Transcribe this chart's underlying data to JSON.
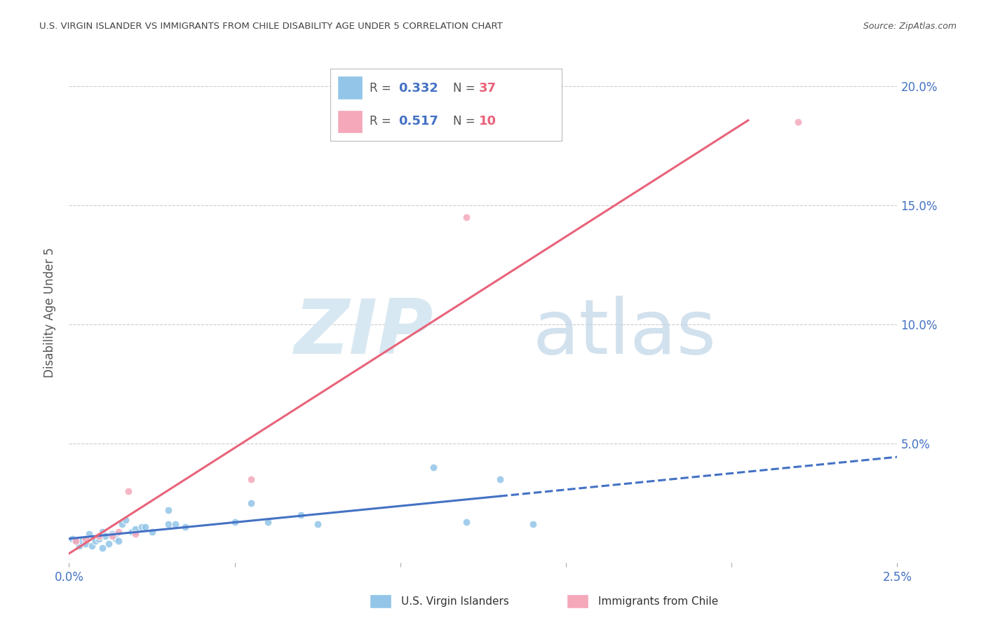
{
  "title": "U.S. VIRGIN ISLANDER VS IMMIGRANTS FROM CHILE DISABILITY AGE UNDER 5 CORRELATION CHART",
  "source": "Source: ZipAtlas.com",
  "ylabel": "Disability Age Under 5",
  "legend_label_blue": "U.S. Virgin Islanders",
  "legend_label_pink": "Immigrants from Chile",
  "r_blue": "0.332",
  "n_blue": "37",
  "r_pink": "0.517",
  "n_pink": "10",
  "xlim": [
    0.0,
    0.025
  ],
  "ylim": [
    0.0,
    0.21
  ],
  "yticks": [
    0.0,
    0.05,
    0.1,
    0.15,
    0.2
  ],
  "ytick_labels_right": [
    "",
    "5.0%",
    "10.0%",
    "15.0%",
    "20.0%"
  ],
  "xticks": [
    0.0,
    0.005,
    0.01,
    0.015,
    0.02,
    0.025
  ],
  "xtick_labels": [
    "0.0%",
    "",
    "",
    "",
    "",
    "2.5%"
  ],
  "blue_scatter_color": "#92C5E8",
  "pink_scatter_color": "#F4A8BA",
  "blue_line_color": "#4472C4",
  "pink_line_color": "#E8637A",
  "axis_label_color": "#4472C4",
  "title_color": "#444444",
  "grid_color": "#CCCCCC",
  "background_color": "#FFFFFF",
  "blue_scatter_x": [
    0.0001,
    0.0002,
    0.0003,
    0.0004,
    0.0005,
    0.0006,
    0.0007,
    0.0008,
    0.0009,
    0.001,
    0.001,
    0.0011,
    0.0012,
    0.0013,
    0.0014,
    0.0015,
    0.0016,
    0.0017,
    0.0019,
    0.002,
    0.002,
    0.0022,
    0.0023,
    0.0025,
    0.003,
    0.003,
    0.0032,
    0.0035,
    0.005,
    0.0055,
    0.006,
    0.007,
    0.0075,
    0.011,
    0.012,
    0.013,
    0.014
  ],
  "blue_scatter_y": [
    0.01,
    0.009,
    0.007,
    0.009,
    0.008,
    0.012,
    0.007,
    0.009,
    0.01,
    0.013,
    0.006,
    0.011,
    0.008,
    0.012,
    0.01,
    0.009,
    0.016,
    0.018,
    0.013,
    0.013,
    0.014,
    0.015,
    0.015,
    0.013,
    0.016,
    0.022,
    0.016,
    0.015,
    0.017,
    0.025,
    0.017,
    0.02,
    0.016,
    0.04,
    0.017,
    0.035,
    0.016
  ],
  "pink_scatter_x": [
    0.0002,
    0.0005,
    0.0009,
    0.0013,
    0.0015,
    0.0018,
    0.002,
    0.0055,
    0.012,
    0.022
  ],
  "pink_scatter_y": [
    0.009,
    0.01,
    0.011,
    0.011,
    0.013,
    0.03,
    0.012,
    0.035,
    0.145,
    0.185
  ]
}
